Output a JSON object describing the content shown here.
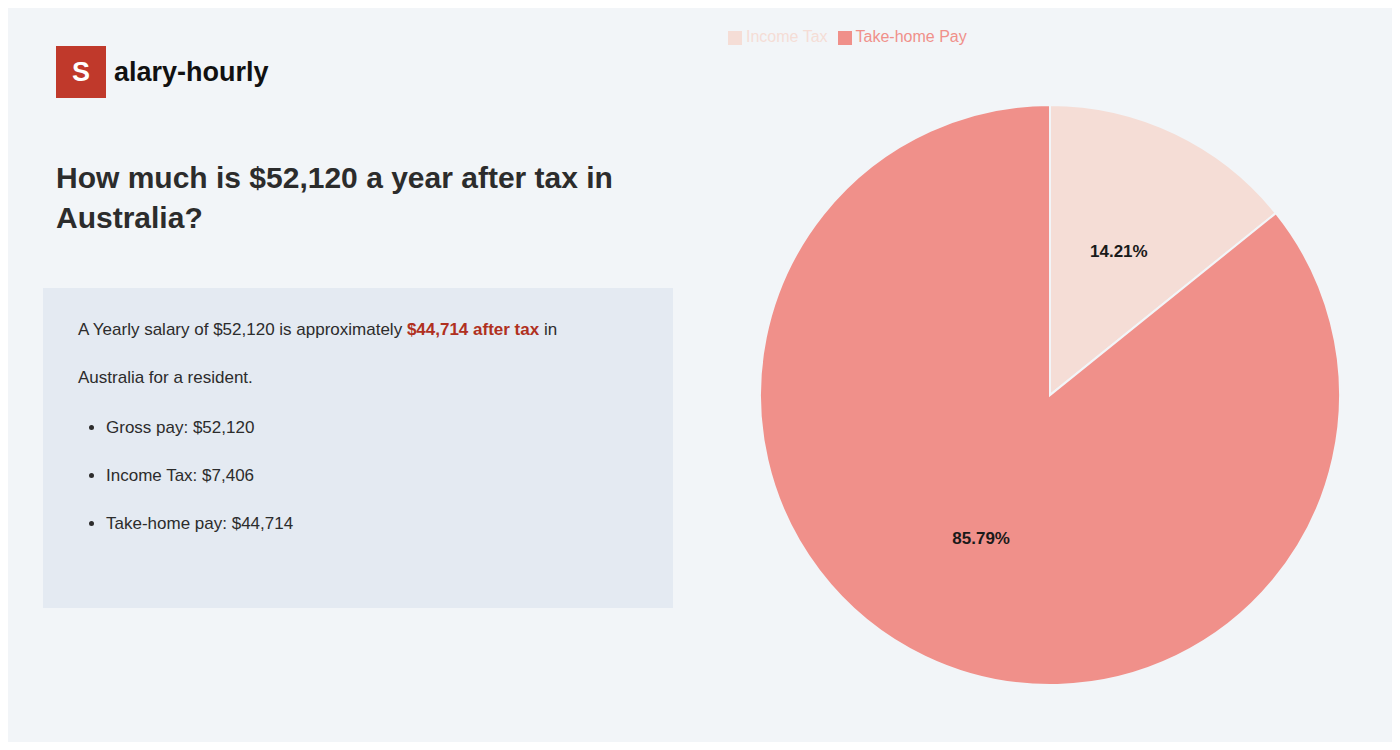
{
  "chart_data": {
    "type": "pie",
    "title": "How much is $52,120 a year after tax in\nAustralia?",
    "categories": [
      "Income Tax",
      "Take-home Pay"
    ],
    "values": [
      14.21,
      85.79
    ],
    "value_labels": [
      "14.21%",
      "85.79%"
    ],
    "data_labels": true,
    "colors": [
      "#f5ddd6",
      "#f0908a"
    ],
    "legend": "upper left",
    "annotations": [
      {
        "text": "S",
        "color": "#ffffff",
        "background": "#c0392b"
      },
      {
        "text": "alary-hourly",
        "color": "#111111"
      },
      {
        "text": "A Yearly salary of $52,120 is approximately ",
        "color": "#2c2c2c"
      },
      {
        "text": "$44,714 after tax",
        "color": "#b03020"
      },
      {
        "text": " in",
        "color": "#2c2c2c"
      },
      {
        "text": "Australia for a resident.",
        "color": "#2c2c2c"
      },
      {
        "text": "Gross pay: $52,120",
        "color": "#2c2c2c"
      },
      {
        "text": "Income Tax: $7,406",
        "color": "#2c2c2c"
      },
      {
        "text": "Take-home pay: $44,714",
        "color": "#2c2c2c"
      }
    ]
  }
}
